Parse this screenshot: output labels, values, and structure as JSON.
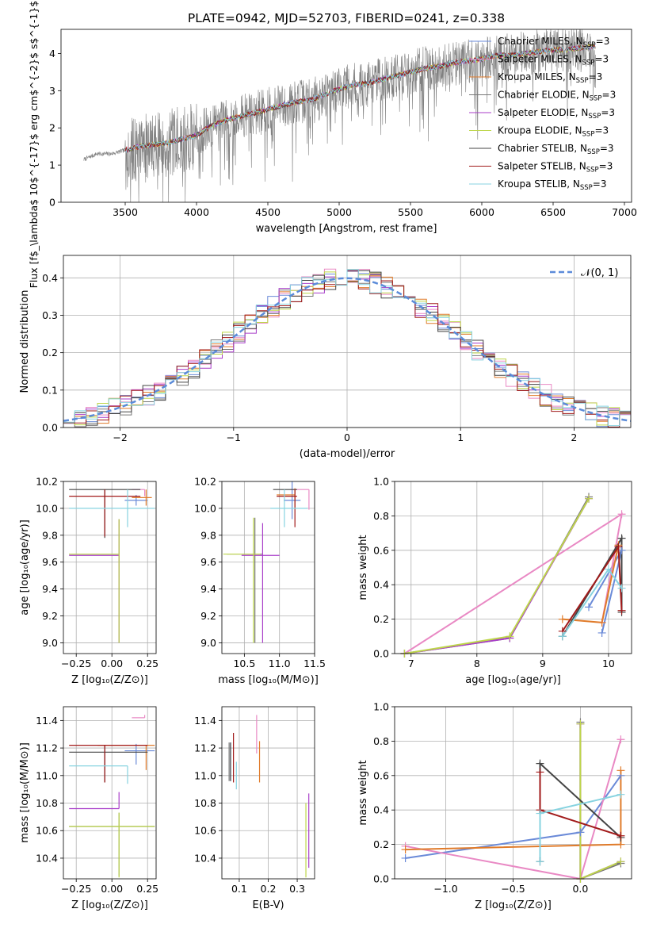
{
  "figure": {
    "suptitle": "PLATE=0942, MJD=52703, FIBERID=0241, z=0.338"
  },
  "colors": {
    "flux_gray": "#808080",
    "gauss": "#5b8bd9",
    "series": [
      "#6a8ad8",
      "#e989c4",
      "#e07b2a",
      "#777777",
      "#a83dc9",
      "#bdd64a",
      "#444444",
      "#a11a1a",
      "#87d3e0"
    ]
  },
  "chart_data": [
    {
      "id": "spectrum",
      "type": "line",
      "title": "PLATE=0942, MJD=52703, FIBERID=0241, z=0.338",
      "xlabel": "wavelength [Angstrom, rest frame]",
      "ylabel": "Flux [f$_\\lambda$ 10$^{-17}$ erg cm$^{-2}$ s$^{-1}$ A$^{-1}$]",
      "xlim": [
        3050,
        7050
      ],
      "ylim": [
        0,
        4.65
      ],
      "xticks": [
        3500,
        4000,
        4500,
        5000,
        5500,
        6000,
        6500,
        7000
      ],
      "yticks": [
        0,
        1,
        2,
        3,
        4
      ],
      "grid": false,
      "legend_position": "top-right",
      "legend": [
        {
          "label": "Chabrier MILES, N",
          "sub": "SSP",
          "suffix": "=3"
        },
        {
          "label": "Salpeter MILES, N",
          "sub": "SSP",
          "suffix": "=3"
        },
        {
          "label": "Kroupa MILES, N",
          "sub": "SSP",
          "suffix": "=3"
        },
        {
          "label": "Chabrier ELODIE, N",
          "sub": "SSP",
          "suffix": "=3"
        },
        {
          "label": "Salpeter ELODIE, N",
          "sub": "SSP",
          "suffix": "=3"
        },
        {
          "label": "Kroupa ELODIE, N",
          "sub": "SSP",
          "suffix": "=3"
        },
        {
          "label": "Chabrier STELIB, N",
          "sub": "SSP",
          "suffix": "=3"
        },
        {
          "label": "Salpeter STELIB, N",
          "sub": "SSP",
          "suffix": "=3"
        },
        {
          "label": "Kroupa STELIB, N",
          "sub": "SSP",
          "suffix": "=3"
        }
      ],
      "data_continuum": {
        "wavelength": [
          3210,
          3300,
          3400,
          3500,
          3600,
          3700,
          3800,
          3900,
          4000,
          4100,
          4200,
          4300,
          4400,
          4500,
          4600,
          4700,
          4800,
          4900,
          5000,
          5100,
          5200,
          5300,
          5400,
          5500,
          5600,
          5700,
          5800,
          5900,
          6000,
          6100,
          6200,
          6300,
          6400,
          6500,
          6600,
          6700,
          6800
        ],
        "flux": [
          1.15,
          1.3,
          1.3,
          1.4,
          1.5,
          1.55,
          1.6,
          1.7,
          1.8,
          2.05,
          2.2,
          2.3,
          2.4,
          2.5,
          2.6,
          2.7,
          2.75,
          2.9,
          3.05,
          3.15,
          3.2,
          3.3,
          3.4,
          3.5,
          3.6,
          3.65,
          3.75,
          3.8,
          3.85,
          3.95,
          3.95,
          4.0,
          4.05,
          4.1,
          4.1,
          4.15,
          4.2
        ]
      },
      "model_start_wavelength": 3500
    },
    {
      "id": "residuals",
      "type": "histogram",
      "xlabel": "(data-model)/error",
      "ylabel": "Normed distribution",
      "xlim": [
        -2.5,
        2.5
      ],
      "ylim": [
        0,
        0.46
      ],
      "xticks": [
        -2,
        -1,
        0,
        1,
        2
      ],
      "xtick_labels": [
        "−2",
        "−1",
        "0",
        "1",
        "2"
      ],
      "yticks": [
        0.0,
        0.1,
        0.2,
        0.3,
        0.4
      ],
      "ytick_labels": [
        "0.0",
        "0.1",
        "0.2",
        "0.3",
        "0.4"
      ],
      "grid": true,
      "bin_width": 0.1,
      "legend_position": "top-right",
      "reference_curve": {
        "label": "𝒩(0, 1)",
        "mean": 0,
        "sigma": 1
      }
    },
    {
      "id": "age_vs_Z",
      "type": "errorbar",
      "xlabel": "Z [log₁₀(Z/Z⊙)]",
      "ylabel": "age  [log₁₀(age/yr)]",
      "xlim": [
        -0.34,
        0.31
      ],
      "ylim": [
        8.92,
        10.2
      ],
      "xticks": [
        -0.25,
        0.0,
        0.25
      ],
      "xtick_labels": [
        "−0.25",
        "0.00",
        "0.25"
      ],
      "yticks": [
        9.0,
        9.2,
        9.4,
        9.6,
        9.8,
        10.0,
        10.2
      ],
      "ytick_labels": [
        "9.0",
        "9.2",
        "9.4",
        "9.6",
        "9.8",
        "10.0",
        "10.2"
      ],
      "grid": true,
      "points": [
        {
          "x": 0.17,
          "xerr": [
            0.08,
            0.08
          ],
          "y": 10.06,
          "yerr": [
            0.04,
            0.04
          ],
          "series": 0
        },
        {
          "x": 0.23,
          "xerr": [
            0.09,
            0.0
          ],
          "y": 10.14,
          "yerr": [
            0.05,
            0.0
          ],
          "series": 1
        },
        {
          "x": 0.24,
          "xerr": [
            0.1,
            0.04
          ],
          "y": 10.08,
          "yerr": [
            0.06,
            0.06
          ],
          "series": 2
        },
        {
          "x": 0.05,
          "xerr": [
            0.35,
            0.0
          ],
          "y": 9.66,
          "yerr": [
            0.66,
            0.26
          ],
          "series": 3
        },
        {
          "x": 0.05,
          "xerr": [
            0.35,
            0.0
          ],
          "y": 9.65,
          "yerr": [
            0.65,
            0.27
          ],
          "series": 4
        },
        {
          "x": 0.05,
          "xerr": [
            0.35,
            0.0
          ],
          "y": 9.66,
          "yerr": [
            0.66,
            0.26
          ],
          "series": 5
        },
        {
          "x": -0.05,
          "xerr": [
            0.25,
            0.25
          ],
          "y": 10.14,
          "yerr": [
            0.36,
            0.0
          ],
          "series": 6
        },
        {
          "x": -0.05,
          "xerr": [
            0.25,
            0.25
          ],
          "y": 10.09,
          "yerr": [
            0.3,
            0.05
          ],
          "series": 7
        },
        {
          "x": 0.11,
          "xerr": [
            0.41,
            0.19
          ],
          "y": 10.0,
          "yerr": [
            0.14,
            0.14
          ],
          "series": 8
        }
      ]
    },
    {
      "id": "age_vs_mass",
      "type": "errorbar",
      "xlabel": "mass [log₁₀(M/M⊙)]",
      "ylabel": "",
      "xlim": [
        10.18,
        11.5
      ],
      "ylim": [
        8.92,
        10.2
      ],
      "xticks": [
        10.5,
        11.0,
        11.5
      ],
      "xtick_labels": [
        "10.5",
        "11.0",
        "11.5"
      ],
      "yticks": [
        9.0,
        9.2,
        9.4,
        9.6,
        9.8,
        10.0,
        10.2
      ],
      "ytick_labels": [
        "9.0",
        "9.2",
        "9.4",
        "9.6",
        "9.8",
        "10.0",
        "10.2"
      ],
      "grid": true,
      "points": [
        {
          "x": 11.18,
          "xerr": [
            0.12,
            0.12
          ],
          "y": 10.06,
          "yerr": [
            0.14,
            0.14
          ],
          "series": 0
        },
        {
          "x": 11.42,
          "xerr": [
            0.26,
            0.0
          ],
          "y": 10.14,
          "yerr": [
            0.15,
            0.0
          ],
          "series": 1
        },
        {
          "x": 11.22,
          "xerr": [
            0.26,
            0.0
          ],
          "y": 10.1,
          "yerr": [
            0.09,
            0.05
          ],
          "series": 2
        },
        {
          "x": 10.65,
          "xerr": [
            0.4,
            0.1
          ],
          "y": 9.66,
          "yerr": [
            0.66,
            0.27
          ],
          "series": 3
        },
        {
          "x": 10.76,
          "xerr": [
            0.3,
            0.24
          ],
          "y": 9.65,
          "yerr": [
            0.65,
            0.24
          ],
          "series": 4
        },
        {
          "x": 10.63,
          "xerr": [
            0.43,
            0.1
          ],
          "y": 9.66,
          "yerr": [
            0.66,
            0.27
          ],
          "series": 5
        },
        {
          "x": 11.17,
          "xerr": [
            0.26,
            0.08
          ],
          "y": 10.14,
          "yerr": [
            0.0,
            0.0
          ],
          "series": 6
        },
        {
          "x": 11.22,
          "xerr": [
            0.26,
            0.03
          ],
          "y": 10.09,
          "yerr": [
            0.23,
            0.05
          ],
          "series": 7
        },
        {
          "x": 11.07,
          "xerr": [
            0.2,
            0.33
          ],
          "y": 10.0,
          "yerr": [
            0.14,
            0.14
          ],
          "series": 8
        }
      ]
    },
    {
      "id": "weight_vs_age",
      "type": "line",
      "xlabel": "age  [log₁₀(age/yr)]",
      "ylabel": "mass weight",
      "xlim": [
        6.75,
        10.35
      ],
      "ylim": [
        0,
        1.0
      ],
      "xticks": [
        7,
        8,
        9,
        10
      ],
      "xtick_labels": [
        "7",
        "8",
        "9",
        "10"
      ],
      "yticks": [
        0,
        0.2,
        0.4,
        0.6,
        0.8,
        1.0
      ],
      "ytick_labels": [
        "0.0",
        "0.2",
        "0.4",
        "0.6",
        "0.8",
        "1.0"
      ],
      "grid": true,
      "series": [
        {
          "x": [
            9.9,
            10.2,
            9.7
          ],
          "y": [
            0.12,
            0.6,
            0.27
          ]
        },
        {
          "x": [
            6.9,
            10.2,
            9.9
          ],
          "y": [
            0.0,
            0.81,
            0.18
          ]
        },
        {
          "x": [
            9.3,
            9.9,
            10.15
          ],
          "y": [
            0.2,
            0.18,
            0.63
          ]
        },
        {
          "x": [
            6.9,
            8.5,
            9.7
          ],
          "y": [
            0.0,
            0.09,
            0.91
          ]
        },
        {
          "x": [
            6.9,
            8.5,
            9.7
          ],
          "y": [
            0.0,
            0.09,
            0.9
          ]
        },
        {
          "x": [
            6.9,
            8.5,
            9.7
          ],
          "y": [
            0.0,
            0.1,
            0.9
          ]
        },
        {
          "x": [
            9.3,
            10.2,
            10.2
          ],
          "y": [
            0.1,
            0.67,
            0.24
          ]
        },
        {
          "x": [
            9.3,
            10.15,
            10.2
          ],
          "y": [
            0.13,
            0.62,
            0.25
          ]
        },
        {
          "x": [
            9.3,
            10.0,
            10.2
          ],
          "y": [
            0.1,
            0.49,
            0.38
          ]
        }
      ]
    },
    {
      "id": "mass_vs_Z",
      "type": "errorbar",
      "xlabel": "Z [log₁₀(Z/Z⊙)]",
      "ylabel": "mass [log₁₀(M/M⊙)]",
      "xlim": [
        -0.34,
        0.31
      ],
      "ylim": [
        10.25,
        11.5
      ],
      "xticks": [
        -0.25,
        0.0,
        0.25
      ],
      "xtick_labels": [
        "−0.25",
        "0.00",
        "0.25"
      ],
      "yticks": [
        10.4,
        10.6,
        10.8,
        11.0,
        11.2,
        11.4
      ],
      "ytick_labels": [
        "10.4",
        "10.6",
        "10.8",
        "11.0",
        "11.2",
        "11.4"
      ],
      "grid": true,
      "points": [
        {
          "x": 0.17,
          "xerr": [
            0.08,
            0.13
          ],
          "y": 11.18,
          "yerr": [
            0.1,
            0.05
          ],
          "series": 0
        },
        {
          "x": 0.23,
          "xerr": [
            0.09,
            0.0
          ],
          "y": 11.42,
          "yerr": [
            0.0,
            0.02
          ],
          "series": 1
        },
        {
          "x": 0.24,
          "xerr": [
            0.34,
            0.06
          ],
          "y": 11.22,
          "yerr": [
            0.18,
            0.0
          ],
          "series": 2
        },
        {
          "x": 0.05,
          "xerr": [
            0.35,
            0.25
          ],
          "y": 10.63,
          "yerr": [
            0.36,
            0.1
          ],
          "series": 3
        },
        {
          "x": 0.05,
          "xerr": [
            0.35,
            0.0
          ],
          "y": 10.76,
          "yerr": [
            0.0,
            0.12
          ],
          "series": 4
        },
        {
          "x": 0.05,
          "xerr": [
            0.35,
            0.25
          ],
          "y": 10.63,
          "yerr": [
            0.37,
            0.1
          ],
          "series": 5
        },
        {
          "x": -0.05,
          "xerr": [
            0.25,
            0.3
          ],
          "y": 11.17,
          "yerr": [
            0.22,
            0.05
          ],
          "series": 6
        },
        {
          "x": -0.05,
          "xerr": [
            0.25,
            0.3
          ],
          "y": 11.22,
          "yerr": [
            0.27,
            0.0
          ],
          "series": 7
        },
        {
          "x": 0.11,
          "xerr": [
            0.41,
            0.0
          ],
          "y": 11.07,
          "yerr": [
            0.13,
            0.0
          ],
          "series": 8
        }
      ]
    },
    {
      "id": "mass_vs_ebv",
      "type": "errorbar",
      "xlabel": "E(B-V)",
      "ylabel": "",
      "xlim": [
        0.04,
        0.36
      ],
      "ylim": [
        10.25,
        11.5
      ],
      "xticks": [
        0.1,
        0.2,
        0.3
      ],
      "xtick_labels": [
        "0.1",
        "0.2",
        "0.3"
      ],
      "yticks": [
        10.4,
        10.6,
        10.8,
        11.0,
        11.2,
        11.4
      ],
      "ytick_labels": [
        "10.4",
        "10.6",
        "10.8",
        "11.0",
        "11.2",
        "11.4"
      ],
      "grid": true,
      "points": [
        {
          "x": 0.07,
          "y": 11.1,
          "yerr": [
            0.14,
            0.14
          ],
          "series": 0
        },
        {
          "x": 0.16,
          "y": 11.3,
          "yerr": [
            0.14,
            0.14
          ],
          "series": 1
        },
        {
          "x": 0.17,
          "y": 11.1,
          "yerr": [
            0.15,
            0.15
          ],
          "series": 2
        },
        {
          "x": 0.065,
          "y": 11.1,
          "yerr": [
            0.14,
            0.14
          ],
          "series": 3
        },
        {
          "x": 0.34,
          "y": 10.6,
          "yerr": [
            0.27,
            0.27
          ],
          "series": 4
        },
        {
          "x": 0.33,
          "y": 10.53,
          "yerr": [
            0.27,
            0.27
          ],
          "series": 5
        },
        {
          "x": 0.07,
          "y": 11.1,
          "yerr": [
            0.14,
            0.14
          ],
          "series": 6
        },
        {
          "x": 0.08,
          "y": 11.13,
          "yerr": [
            0.18,
            0.18
          ],
          "series": 7
        },
        {
          "x": 0.09,
          "y": 11.0,
          "yerr": [
            0.1,
            0.1
          ],
          "series": 8
        }
      ]
    },
    {
      "id": "weight_vs_Z",
      "type": "line",
      "xlabel": "Z [log₁₀(Z/Z⊙)]",
      "ylabel": "mass weight",
      "xlim": [
        -1.38,
        0.38
      ],
      "ylim": [
        0,
        1.0
      ],
      "xticks": [
        -1.0,
        -0.5,
        0.0
      ],
      "xtick_labels": [
        "−1.0",
        "−0.5",
        "0.0"
      ],
      "yticks": [
        0,
        0.2,
        0.4,
        0.6,
        0.8,
        1.0
      ],
      "ytick_labels": [
        "0.0",
        "0.2",
        "0.4",
        "0.6",
        "0.8",
        "1.0"
      ],
      "grid": true,
      "series": [
        {
          "x": [
            -1.3,
            0.0,
            0.3
          ],
          "y": [
            0.12,
            0.27,
            0.6
          ]
        },
        {
          "x": [
            -1.3,
            0.0,
            0.3
          ],
          "y": [
            0.19,
            0.0,
            0.81
          ]
        },
        {
          "x": [
            -1.3,
            0.3,
            0.3
          ],
          "y": [
            0.17,
            0.2,
            0.63
          ]
        },
        {
          "x": [
            0.0,
            0.0,
            0.3
          ],
          "y": [
            0.91,
            0.0,
            0.09
          ]
        },
        {
          "x": [
            0.0,
            0.0,
            0.3
          ],
          "y": [
            0.9,
            0.0,
            0.1
          ]
        },
        {
          "x": [
            0.0,
            0.0,
            0.3
          ],
          "y": [
            0.9,
            0.0,
            0.1
          ]
        },
        {
          "x": [
            -0.3,
            -0.3,
            0.3
          ],
          "y": [
            0.1,
            0.67,
            0.24
          ]
        },
        {
          "x": [
            -0.3,
            -0.3,
            0.3
          ],
          "y": [
            0.62,
            0.4,
            0.25
          ]
        },
        {
          "x": [
            -0.3,
            -0.3,
            0.3
          ],
          "y": [
            0.1,
            0.38,
            0.49
          ]
        }
      ]
    }
  ]
}
